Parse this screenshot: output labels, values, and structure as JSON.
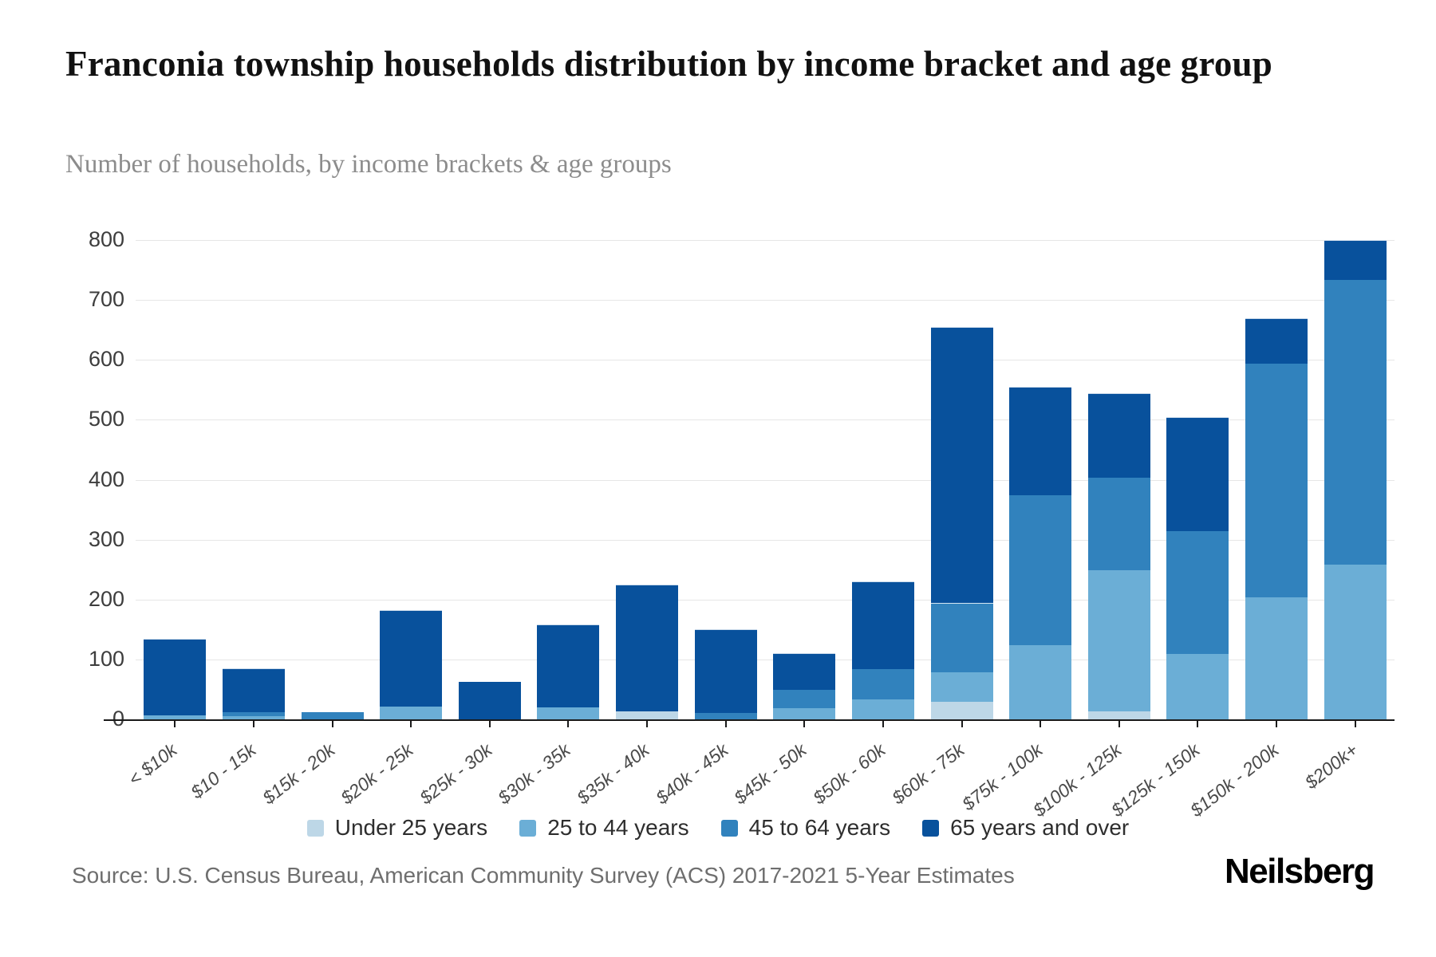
{
  "header": {
    "title": "Franconia township households distribution by income bracket and age group",
    "subtitle": "Number of households, by income brackets & age groups"
  },
  "footer": {
    "source": "Source: U.S. Census Bureau, American Community Survey (ACS) 2017-2021 5-Year Estimates",
    "logo": "Neilsberg"
  },
  "chart_data": {
    "type": "bar",
    "stacked": true,
    "title": "Franconia township households distribution by income bracket and age group",
    "subtitle": "Number of households, by income brackets & age groups",
    "xlabel": "",
    "ylabel": "Number of households",
    "ylim": [
      0,
      800
    ],
    "ytick_step": 100,
    "grid": true,
    "legend_position": "bottom",
    "categories": [
      "< $10k",
      "$10 - 15k",
      "$15k - 20k",
      "$20k - 25k",
      "$25k - 30k",
      "$30k - 35k",
      "$35k - 40k",
      "$40k - 45k",
      "$45k - 50k",
      "$50k - 60k",
      "$60k - 75k",
      "$75k - 100k",
      "$100k - 125k",
      "$125k - 150k",
      "$150k - 200k",
      "$200k+"
    ],
    "series": [
      {
        "name": "Under 25 years",
        "color": "#bdd7e7",
        "values": [
          0,
          0,
          0,
          0,
          0,
          0,
          15,
          0,
          0,
          0,
          30,
          0,
          15,
          0,
          0,
          0
        ]
      },
      {
        "name": "25 to 44 years",
        "color": "#6baed6",
        "values": [
          8,
          7,
          0,
          22,
          0,
          21,
          0,
          0,
          20,
          35,
          50,
          125,
          235,
          110,
          205,
          260
        ]
      },
      {
        "name": "45 to 64 years",
        "color": "#3182bd",
        "values": [
          0,
          6,
          12,
          0,
          0,
          0,
          0,
          12,
          30,
          50,
          115,
          250,
          155,
          205,
          390,
          475
        ]
      },
      {
        "name": "65 years and over",
        "color": "#08519c",
        "values": [
          127,
          72,
          0,
          160,
          62,
          137,
          210,
          138,
          60,
          145,
          460,
          180,
          140,
          190,
          75,
          65
        ]
      }
    ],
    "totals": [
      135,
      85,
      12,
      182,
      62,
      158,
      225,
      150,
      110,
      230,
      655,
      555,
      545,
      505,
      670,
      800
    ]
  }
}
